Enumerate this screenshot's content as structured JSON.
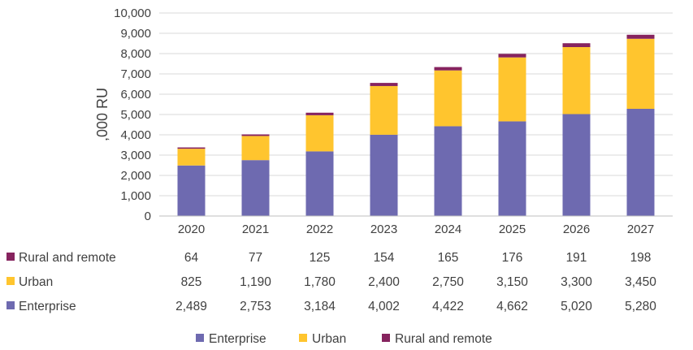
{
  "chart_data": {
    "type": "bar",
    "stacked": true,
    "ylabel": ",000 RU",
    "ylim": [
      0,
      10000
    ],
    "yticks": [
      "0",
      "1,000",
      "2,000",
      "3,000",
      "4,000",
      "5,000",
      "6,000",
      "7,000",
      "8,000",
      "9,000",
      "10,000"
    ],
    "categories": [
      "2020",
      "2021",
      "2022",
      "2023",
      "2024",
      "2025",
      "2026",
      "2027"
    ],
    "series": [
      {
        "name": "Enterprise",
        "color": "#6E6AB0",
        "values": [
          2489,
          2753,
          3184,
          4002,
          4422,
          4662,
          5020,
          5280
        ],
        "labels": [
          "2,489",
          "2,753",
          "3,184",
          "4,002",
          "4,422",
          "4,662",
          "5,020",
          "5,280"
        ]
      },
      {
        "name": "Urban",
        "color": "#FFC52E",
        "values": [
          825,
          1190,
          1780,
          2400,
          2750,
          3150,
          3300,
          3450
        ],
        "labels": [
          "825",
          "1,190",
          "1,780",
          "2,400",
          "2,750",
          "3,150",
          "3,300",
          "3,450"
        ]
      },
      {
        "name": "Rural and remote",
        "color": "#86235E",
        "values": [
          64,
          77,
          125,
          154,
          165,
          176,
          191,
          198
        ],
        "labels": [
          "64",
          "77",
          "125",
          "154",
          "165",
          "176",
          "191",
          "198"
        ]
      }
    ],
    "data_table": true,
    "legend_position": "bottom",
    "grid": true
  }
}
